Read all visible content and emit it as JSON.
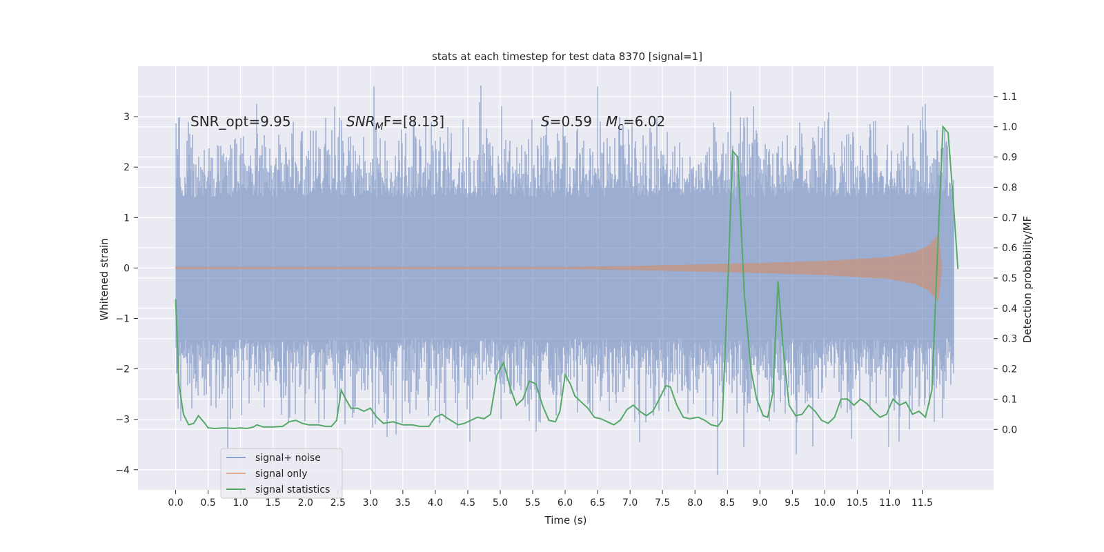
{
  "chart_data": {
    "type": "line",
    "title": "stats at each timestep for test data 8370 [signal=1]",
    "xlabel": "Time (s)",
    "ylabel_left": "Whitened strain",
    "ylabel_right": "Detection probability/MF",
    "xlim": [
      -0.58,
      12.6
    ],
    "ylim_left": [
      -4.4,
      4.0
    ],
    "ylim_right": [
      -0.2,
      1.2
    ],
    "x_ticks": [
      "0.0",
      "0.5",
      "1.0",
      "1.5",
      "2.0",
      "2.5",
      "3.0",
      "3.5",
      "4.0",
      "4.5",
      "5.0",
      "5.5",
      "6.0",
      "6.5",
      "7.0",
      "7.5",
      "8.0",
      "8.5",
      "9.0",
      "9.5",
      "10.0",
      "10.5",
      "11.0",
      "11.5"
    ],
    "y_ticks_left": [
      "3",
      "2",
      "1",
      "0",
      "−1",
      "−2",
      "−3",
      "−4"
    ],
    "y_ticks_left_values": [
      3,
      2,
      1,
      0,
      -1,
      -2,
      -3,
      -4
    ],
    "y_ticks_right": [
      "1.1",
      "1.0",
      "0.9",
      "0.8",
      "0.7",
      "0.6",
      "0.5",
      "0.4",
      "0.3",
      "0.2",
      "0.1",
      "0.0"
    ],
    "y_ticks_right_values": [
      1.1,
      1.0,
      0.9,
      0.8,
      0.7,
      0.6,
      0.5,
      0.4,
      0.3,
      0.2,
      0.1,
      0.0
    ],
    "annotations": {
      "snr_opt": "SNR_opt=9.95",
      "snr_mf_sym": "SNR",
      "snr_mf_sub": "M",
      "snr_mf_rest": "F=[8.13]",
      "s_sym": "S",
      "s_val": "=0.59",
      "mc_sym": "M",
      "mc_sub": "c",
      "mc_val": "=6.02"
    },
    "legend": {
      "position": "lower-left",
      "entries": [
        "signal+ noise",
        "signal only",
        "signal statistics"
      ]
    },
    "series": [
      {
        "name": "signal+ noise",
        "axis": "left",
        "color": "#4c72b0",
        "kind": "noise-band",
        "t_range": [
          0.0,
          11.98
        ],
        "envelope_quantiles": {
          "p_min": -2.3,
          "p_max": 2.3
        },
        "extreme_peaks": [
          {
            "x": 3.05,
            "y": 3.6
          },
          {
            "x": 4.7,
            "y": 3.62
          },
          {
            "x": 6.5,
            "y": 3.6
          },
          {
            "x": 8.55,
            "y": 3.5
          },
          {
            "x": 8.35,
            "y": -4.1
          },
          {
            "x": 0.8,
            "y": -3.7
          },
          {
            "x": 8.75,
            "y": -3.55
          },
          {
            "x": 1.25,
            "y": 3.25
          },
          {
            "x": 2.45,
            "y": 3.2
          },
          {
            "x": 11.5,
            "y": 3.2
          },
          {
            "x": 11.55,
            "y": 3.25
          },
          {
            "x": 3.4,
            "y": -3.3
          },
          {
            "x": 7.15,
            "y": -3.45
          },
          {
            "x": 11.3,
            "y": -3.2
          },
          {
            "x": 5.55,
            "y": -3.25
          }
        ]
      },
      {
        "name": "signal only",
        "axis": "left",
        "color": "#dd8452",
        "kind": "chirp",
        "t_range": [
          0.0,
          11.8
        ],
        "amplitude_points": [
          [
            0.0,
            0.02
          ],
          [
            6.0,
            0.02
          ],
          [
            7.0,
            0.04
          ],
          [
            8.0,
            0.07
          ],
          [
            9.0,
            0.1
          ],
          [
            10.0,
            0.14
          ],
          [
            11.0,
            0.22
          ],
          [
            11.4,
            0.32
          ],
          [
            11.6,
            0.45
          ],
          [
            11.75,
            0.65
          ],
          [
            11.8,
            0.05
          ]
        ]
      },
      {
        "name": "signal statistics",
        "axis": "right",
        "color": "#55a868",
        "kind": "line",
        "points": [
          [
            0.0,
            0.43
          ],
          [
            0.05,
            0.15
          ],
          [
            0.12,
            0.05
          ],
          [
            0.2,
            0.015
          ],
          [
            0.28,
            0.02
          ],
          [
            0.35,
            0.045
          ],
          [
            0.45,
            0.02
          ],
          [
            0.5,
            0.005
          ],
          [
            0.6,
            0.003
          ],
          [
            0.75,
            0.005
          ],
          [
            0.9,
            0.003
          ],
          [
            1.0,
            0.005
          ],
          [
            1.1,
            0.003
          ],
          [
            1.2,
            0.008
          ],
          [
            1.25,
            0.015
          ],
          [
            1.35,
            0.008
          ],
          [
            1.5,
            0.008
          ],
          [
            1.65,
            0.01
          ],
          [
            1.75,
            0.025
          ],
          [
            1.85,
            0.03
          ],
          [
            1.95,
            0.02
          ],
          [
            2.05,
            0.015
          ],
          [
            2.2,
            0.015
          ],
          [
            2.3,
            0.01
          ],
          [
            2.4,
            0.01
          ],
          [
            2.48,
            0.03
          ],
          [
            2.55,
            0.13
          ],
          [
            2.62,
            0.1
          ],
          [
            2.7,
            0.07
          ],
          [
            2.8,
            0.07
          ],
          [
            2.9,
            0.06
          ],
          [
            3.0,
            0.07
          ],
          [
            3.1,
            0.04
          ],
          [
            3.2,
            0.02
          ],
          [
            3.35,
            0.025
          ],
          [
            3.5,
            0.015
          ],
          [
            3.65,
            0.015
          ],
          [
            3.75,
            0.01
          ],
          [
            3.9,
            0.01
          ],
          [
            4.0,
            0.04
          ],
          [
            4.1,
            0.05
          ],
          [
            4.2,
            0.035
          ],
          [
            4.35,
            0.015
          ],
          [
            4.45,
            0.02
          ],
          [
            4.55,
            0.03
          ],
          [
            4.65,
            0.04
          ],
          [
            4.75,
            0.035
          ],
          [
            4.85,
            0.05
          ],
          [
            4.95,
            0.18
          ],
          [
            5.05,
            0.22
          ],
          [
            5.15,
            0.14
          ],
          [
            5.25,
            0.08
          ],
          [
            5.35,
            0.1
          ],
          [
            5.45,
            0.16
          ],
          [
            5.55,
            0.15
          ],
          [
            5.65,
            0.08
          ],
          [
            5.75,
            0.03
          ],
          [
            5.85,
            0.025
          ],
          [
            5.92,
            0.06
          ],
          [
            6.0,
            0.18
          ],
          [
            6.08,
            0.15
          ],
          [
            6.15,
            0.11
          ],
          [
            6.25,
            0.09
          ],
          [
            6.35,
            0.07
          ],
          [
            6.45,
            0.04
          ],
          [
            6.55,
            0.035
          ],
          [
            6.65,
            0.025
          ],
          [
            6.75,
            0.015
          ],
          [
            6.85,
            0.03
          ],
          [
            6.95,
            0.065
          ],
          [
            7.05,
            0.08
          ],
          [
            7.15,
            0.06
          ],
          [
            7.25,
            0.045
          ],
          [
            7.35,
            0.06
          ],
          [
            7.45,
            0.1
          ],
          [
            7.55,
            0.145
          ],
          [
            7.62,
            0.14
          ],
          [
            7.72,
            0.08
          ],
          [
            7.82,
            0.04
          ],
          [
            7.92,
            0.035
          ],
          [
            8.05,
            0.04
          ],
          [
            8.15,
            0.03
          ],
          [
            8.25,
            0.015
          ],
          [
            8.35,
            0.01
          ],
          [
            8.42,
            0.03
          ],
          [
            8.5,
            0.45
          ],
          [
            8.58,
            0.92
          ],
          [
            8.66,
            0.9
          ],
          [
            8.76,
            0.45
          ],
          [
            8.86,
            0.2
          ],
          [
            8.95,
            0.1
          ],
          [
            9.05,
            0.045
          ],
          [
            9.12,
            0.04
          ],
          [
            9.2,
            0.12
          ],
          [
            9.28,
            0.49
          ],
          [
            9.36,
            0.26
          ],
          [
            9.45,
            0.08
          ],
          [
            9.55,
            0.045
          ],
          [
            9.65,
            0.05
          ],
          [
            9.75,
            0.08
          ],
          [
            9.85,
            0.06
          ],
          [
            9.95,
            0.03
          ],
          [
            10.05,
            0.02
          ],
          [
            10.15,
            0.04
          ],
          [
            10.25,
            0.1
          ],
          [
            10.35,
            0.1
          ],
          [
            10.45,
            0.08
          ],
          [
            10.55,
            0.1
          ],
          [
            10.65,
            0.085
          ],
          [
            10.75,
            0.06
          ],
          [
            10.85,
            0.04
          ],
          [
            10.95,
            0.05
          ],
          [
            11.05,
            0.1
          ],
          [
            11.15,
            0.08
          ],
          [
            11.25,
            0.09
          ],
          [
            11.35,
            0.05
          ],
          [
            11.45,
            0.06
          ],
          [
            11.55,
            0.04
          ],
          [
            11.65,
            0.13
          ],
          [
            11.73,
            0.55
          ],
          [
            11.82,
            1.0
          ],
          [
            11.9,
            0.98
          ],
          [
            11.98,
            0.75
          ],
          [
            12.05,
            0.53
          ]
        ]
      }
    ]
  }
}
